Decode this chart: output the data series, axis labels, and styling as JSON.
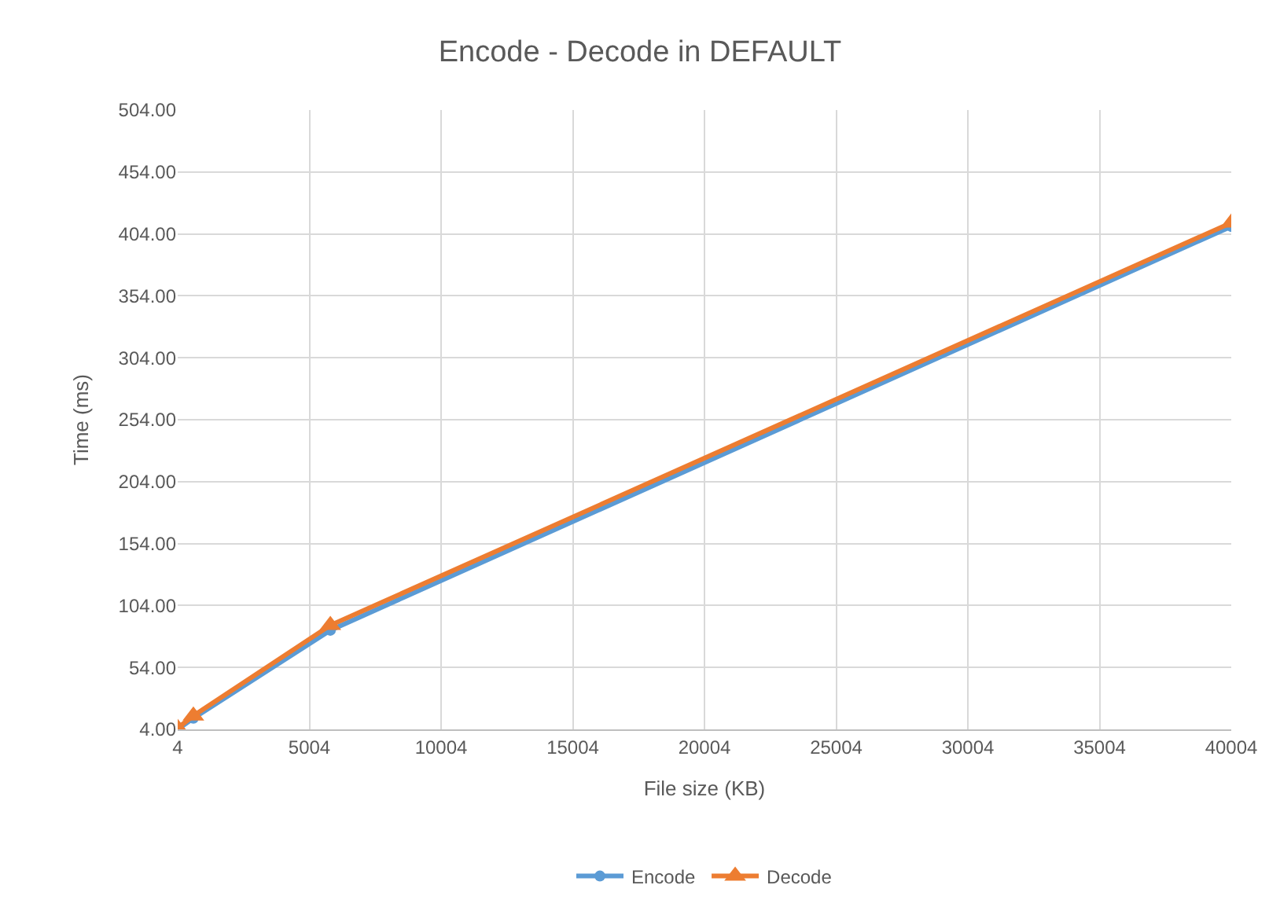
{
  "chart_data": {
    "type": "line",
    "title": "Encode - Decode in DEFAULT",
    "xlabel": "File size (KB)",
    "ylabel": "Time (ms)",
    "xlim": [
      4,
      40004
    ],
    "xticks": [
      4,
      5004,
      10004,
      15004,
      20004,
      25004,
      30004,
      35004,
      40004
    ],
    "ylim": [
      4,
      504
    ],
    "yticks": [
      {
        "value": 4,
        "label": "4.00"
      },
      {
        "value": 54,
        "label": "54.00"
      },
      {
        "value": 104,
        "label": "104.00"
      },
      {
        "value": 154,
        "label": "154.00"
      },
      {
        "value": 204,
        "label": "204.00"
      },
      {
        "value": 254,
        "label": "254.00"
      },
      {
        "value": 304,
        "label": "304.00"
      },
      {
        "value": 354,
        "label": "354.00"
      },
      {
        "value": 404,
        "label": "404.00"
      },
      {
        "value": 454,
        "label": "454.00"
      },
      {
        "value": 504,
        "label": "504.00"
      }
    ],
    "grid": true,
    "legend": "bottom",
    "series": [
      {
        "name": "Encode",
        "color": "#5b9bd5",
        "marker": "circle",
        "x": [
          4,
          600,
          5800,
          40004
        ],
        "values": [
          4,
          13,
          84,
          410
        ]
      },
      {
        "name": "Decode",
        "color": "#ed7d31",
        "marker": "triangle",
        "x": [
          4,
          600,
          5800,
          40004
        ],
        "values": [
          5,
          15,
          88,
          413
        ]
      }
    ]
  }
}
